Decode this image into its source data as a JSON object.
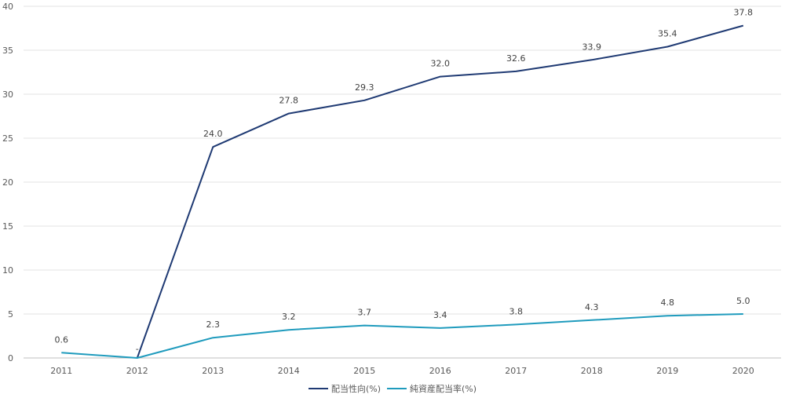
{
  "chart_data": {
    "type": "line",
    "categories": [
      "2011",
      "2012",
      "2013",
      "2014",
      "2015",
      "2016",
      "2017",
      "2018",
      "2019",
      "2020"
    ],
    "ylim": [
      0,
      40
    ],
    "yticks": [
      0,
      5,
      10,
      15,
      20,
      25,
      30,
      35,
      40
    ],
    "grid": true,
    "legend_position": "bottom",
    "series": [
      {
        "name": "配当性向(%)",
        "color": "#1f3a73",
        "values": [
          null,
          0,
          24.0,
          27.8,
          29.3,
          32.0,
          32.6,
          33.9,
          35.4,
          37.8
        ],
        "labels": [
          "",
          "-",
          "24.0",
          "27.8",
          "29.3",
          "32.0",
          "32.6",
          "33.9",
          "35.4",
          "37.8"
        ]
      },
      {
        "name": "純資産配当率(%)",
        "color": "#1f9bbd",
        "values": [
          0.6,
          0,
          2.3,
          3.2,
          3.7,
          3.4,
          3.8,
          4.3,
          4.8,
          5.0
        ],
        "labels": [
          "0.6",
          "",
          "2.3",
          "3.2",
          "3.7",
          "3.4",
          "3.8",
          "4.3",
          "4.8",
          "5.0"
        ]
      }
    ]
  }
}
